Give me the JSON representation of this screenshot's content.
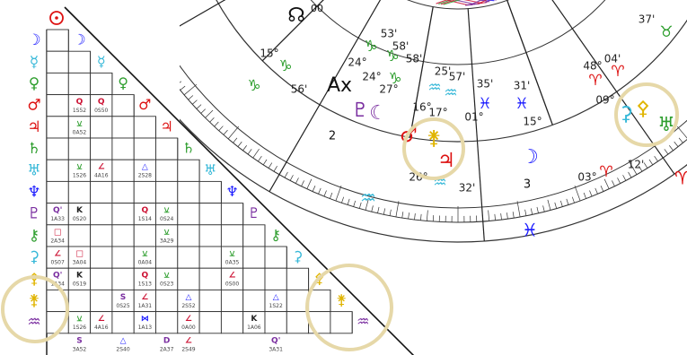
{
  "grid": {
    "rows": [
      {
        "glyph": "☽",
        "color": "#1a1aff"
      },
      {
        "glyph": "☿",
        "color": "#36b8d8"
      },
      {
        "glyph": "♀",
        "color": "#2e9e2e"
      },
      {
        "glyph": "♂",
        "color": "#dd1111"
      },
      {
        "glyph": "♃",
        "color": "#dd1111"
      },
      {
        "glyph": "♄",
        "color": "#2e9e2e"
      },
      {
        "glyph": "♅",
        "color": "#36b8d8"
      },
      {
        "glyph": "♆",
        "color": "#1a1aff"
      },
      {
        "glyph": "♇",
        "color": "#7a2ea0"
      },
      {
        "glyph": "⚷",
        "color": "#2e9e2e"
      },
      {
        "glyph": "⚳",
        "color": "#36b8d8"
      },
      {
        "glyph": "⚴",
        "color": "#e0b400"
      },
      {
        "glyph": "⚵",
        "color": "#e0b400"
      },
      {
        "glyph": "♒",
        "color": "#7a2ea0"
      }
    ],
    "aspects": [
      {
        "r": 3,
        "c": 1,
        "glyph": "Q",
        "orb": "1S52",
        "color": "#cc1133"
      },
      {
        "r": 3,
        "c": 2,
        "glyph": "Q",
        "orb": "0S50",
        "color": "#cc1133"
      },
      {
        "r": 4,
        "c": 1,
        "glyph": "⚺",
        "orb": "0A52",
        "color": "#2e9e2e"
      },
      {
        "r": 6,
        "c": 1,
        "glyph": "⚺",
        "orb": "1S26",
        "color": "#2e9e2e"
      },
      {
        "r": 6,
        "c": 2,
        "glyph": "∠",
        "orb": "4A16",
        "color": "#cc1133"
      },
      {
        "r": 6,
        "c": 4,
        "glyph": "△",
        "orb": "2S28",
        "color": "#1a1aff"
      },
      {
        "r": 8,
        "c": 0,
        "glyph": "Q'",
        "orb": "1A33",
        "color": "#7a2ea0"
      },
      {
        "r": 8,
        "c": 1,
        "glyph": "K",
        "orb": "0S20",
        "color": "#222222"
      },
      {
        "r": 8,
        "c": 4,
        "glyph": "Q",
        "orb": "1S14",
        "color": "#cc1133"
      },
      {
        "r": 8,
        "c": 5,
        "glyph": "⚺",
        "orb": "0S24",
        "color": "#2e9e2e"
      },
      {
        "r": 9,
        "c": 0,
        "glyph": "□",
        "orb": "2A34",
        "color": "#cc1133"
      },
      {
        "r": 9,
        "c": 5,
        "glyph": "⚺",
        "orb": "3A29",
        "color": "#2e9e2e"
      },
      {
        "r": 10,
        "c": 0,
        "glyph": "∠",
        "orb": "0S07",
        "color": "#cc1133"
      },
      {
        "r": 10,
        "c": 1,
        "glyph": "□",
        "orb": "3A04",
        "color": "#cc1133"
      },
      {
        "r": 10,
        "c": 4,
        "glyph": "⚺",
        "orb": "0A04",
        "color": "#2e9e2e"
      },
      {
        "r": 10,
        "c": 8,
        "glyph": "⚺",
        "orb": "0A35",
        "color": "#2e9e2e"
      },
      {
        "r": 11,
        "c": 0,
        "glyph": "Q'",
        "orb": "1A34",
        "color": "#7a2ea0"
      },
      {
        "r": 11,
        "c": 1,
        "glyph": "K",
        "orb": "0S19",
        "color": "#222222"
      },
      {
        "r": 11,
        "c": 4,
        "glyph": "Q",
        "orb": "1S13",
        "color": "#cc1133"
      },
      {
        "r": 11,
        "c": 5,
        "glyph": "⚺",
        "orb": "0S23",
        "color": "#2e9e2e"
      },
      {
        "r": 11,
        "c": 8,
        "glyph": "∠",
        "orb": "0S00",
        "color": "#cc1133"
      },
      {
        "r": 12,
        "c": 3,
        "glyph": "S",
        "orb": "0S25",
        "color": "#7a2ea0"
      },
      {
        "r": 12,
        "c": 4,
        "glyph": "∠",
        "orb": "1A31",
        "color": "#cc1133"
      },
      {
        "r": 12,
        "c": 6,
        "glyph": "△",
        "orb": "2S52",
        "color": "#1a1aff"
      },
      {
        "r": 12,
        "c": 10,
        "glyph": "△",
        "orb": "1S22",
        "color": "#1a1aff"
      },
      {
        "r": 13,
        "c": 1,
        "glyph": "⚺",
        "orb": "1S26",
        "color": "#2e9e2e"
      },
      {
        "r": 13,
        "c": 2,
        "glyph": "∠",
        "orb": "4A16",
        "color": "#cc1133"
      },
      {
        "r": 13,
        "c": 4,
        "glyph": "⋈",
        "orb": "1A13",
        "color": "#1a1aff"
      },
      {
        "r": 13,
        "c": 6,
        "glyph": "∠",
        "orb": "0A00",
        "color": "#cc1133"
      },
      {
        "r": 13,
        "c": 9,
        "glyph": "K",
        "orb": "1A06",
        "color": "#222222"
      },
      {
        "r": 14,
        "c": 1,
        "glyph": "S",
        "orb": "3A52",
        "color": "#7a2ea0"
      },
      {
        "r": 14,
        "c": 3,
        "glyph": "△",
        "orb": "2S40",
        "color": "#1a1aff"
      },
      {
        "r": 14,
        "c": 5,
        "glyph": "D",
        "orb": "2A37",
        "color": "#7a2ea0"
      },
      {
        "r": 14,
        "c": 6,
        "glyph": "∠",
        "orb": "2S49",
        "color": "#cc1133"
      },
      {
        "r": 14,
        "c": 10,
        "glyph": "Q'",
        "orb": "3A31",
        "color": "#7a2ea0"
      }
    ]
  },
  "wheel": {
    "north_node": "☊",
    "north_node_deg": "00",
    "ascendant": "Ax",
    "labels": [
      {
        "text": "15°",
        "color": "#222222"
      },
      {
        "text": "♑",
        "color": "#2e9e2e"
      },
      {
        "text": "♑",
        "color": "#2e9e2e"
      },
      {
        "text": "56'",
        "color": "#222222"
      },
      {
        "text": "53'",
        "color": "#222222"
      },
      {
        "text": "♑",
        "color": "#2e9e2e"
      },
      {
        "text": "58'",
        "color": "#222222"
      },
      {
        "text": "24°",
        "color": "#222222"
      },
      {
        "text": "♑",
        "color": "#2e9e2e"
      },
      {
        "text": "58'",
        "color": "#222222"
      },
      {
        "text": "24°",
        "color": "#222222"
      },
      {
        "text": "♑",
        "color": "#2e9e2e"
      },
      {
        "text": "27°",
        "color": "#222222"
      },
      {
        "text": "25'",
        "color": "#222222"
      },
      {
        "text": "57'",
        "color": "#222222"
      },
      {
        "text": "♒",
        "color": "#36b8d8"
      },
      {
        "text": "♒",
        "color": "#36b8d8"
      },
      {
        "text": "16°",
        "color": "#222222"
      },
      {
        "text": "17°",
        "color": "#222222"
      },
      {
        "text": "35'",
        "color": "#222222"
      },
      {
        "text": "♓",
        "color": "#1a1aff"
      },
      {
        "text": "01°",
        "color": "#222222"
      },
      {
        "text": "31'",
        "color": "#222222"
      },
      {
        "text": "♓",
        "color": "#1a1aff"
      },
      {
        "text": "15°",
        "color": "#222222"
      },
      {
        "text": "48°",
        "color": "#222222"
      },
      {
        "text": "04'",
        "color": "#222222"
      },
      {
        "text": "♈",
        "color": "#dd1111"
      },
      {
        "text": "♈",
        "color": "#dd1111"
      },
      {
        "text": "09°",
        "color": "#222222"
      },
      {
        "text": "37'",
        "color": "#222222"
      },
      {
        "text": "♉",
        "color": "#2e9e2e"
      },
      {
        "text": "26°",
        "color": "#222222"
      },
      {
        "text": "♒",
        "color": "#36b8d8"
      },
      {
        "text": "32'",
        "color": "#222222"
      },
      {
        "text": "03°",
        "color": "#222222"
      },
      {
        "text": "♈",
        "color": "#dd1111"
      },
      {
        "text": "12'",
        "color": "#222222"
      }
    ],
    "planets": [
      {
        "glyph": "♇",
        "color": "#7a2ea0"
      },
      {
        "glyph": "☾",
        "color": "#7a2ea0"
      },
      {
        "glyph": "♂",
        "color": "#dd1111"
      },
      {
        "glyph": "⚵",
        "color": "#e0b400"
      },
      {
        "glyph": "♃",
        "color": "#dd1111"
      },
      {
        "glyph": "☽",
        "color": "#1a1aff"
      },
      {
        "glyph": "⚳",
        "color": "#36b8d8"
      },
      {
        "glyph": "⚴",
        "color": "#e0b400"
      },
      {
        "glyph": "♅",
        "color": "#2e9e2e"
      }
    ],
    "houses": [
      "2",
      "3"
    ],
    "zodiac_band": [
      {
        "glyph": "♒",
        "color": "#36b8d8"
      },
      {
        "glyph": "♓",
        "color": "#1a1aff"
      },
      {
        "glyph": "♈",
        "color": "#dd1111"
      }
    ]
  }
}
